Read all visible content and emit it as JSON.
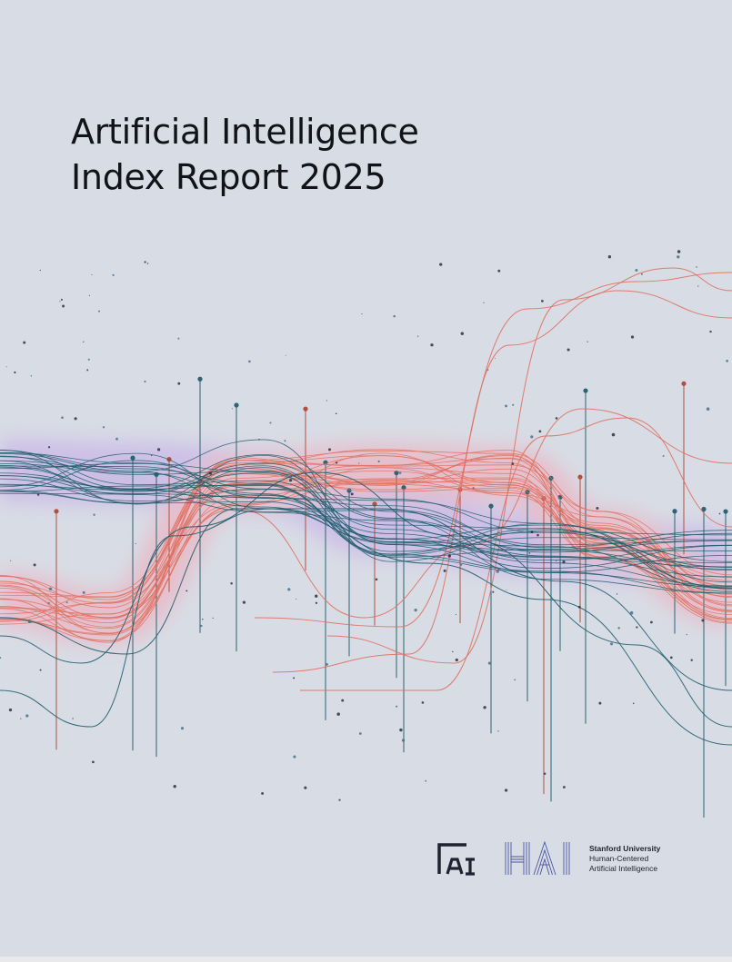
{
  "cover": {
    "title_line1": "Artificial Intelligence",
    "title_line2": "Index Report 2025"
  },
  "logos": {
    "ai_index_logo": "ai-index-logo",
    "hai_wordmark": "HAI",
    "hai_university": "Stanford University",
    "hai_line2": "Human-Centered",
    "hai_line3": "Artificial Intelligence"
  },
  "colors": {
    "background": "#d8dce5",
    "teal": "#1f5d6a",
    "coral": "#e0705f",
    "text": "#111318"
  }
}
